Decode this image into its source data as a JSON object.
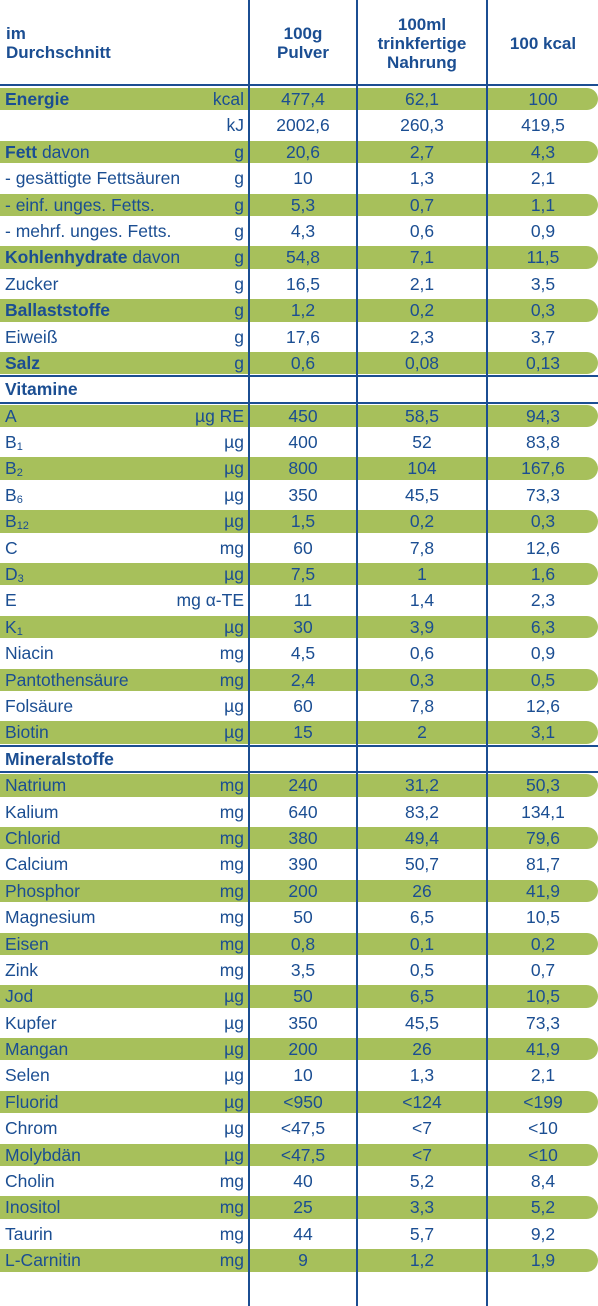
{
  "header": {
    "col0_line1": "im",
    "col0_line2": "Durchschnitt",
    "col1_line1": "100g",
    "col1_line2": "Pulver",
    "col2_line1": "100ml",
    "col2_line2": "trinkfertige",
    "col2_line3": "Nahrung",
    "col3_line1": "100 kcal"
  },
  "rows": [
    {
      "name_bold": "Energie",
      "name": "",
      "sub": "",
      "unit": "kcal",
      "v1": "477,4",
      "v2": "62,1",
      "v3": "100",
      "green": true
    },
    {
      "name_bold": "",
      "name": "",
      "sub": "",
      "unit": "kJ",
      "v1": "2002,6",
      "v2": "260,3",
      "v3": "419,5",
      "green": false
    },
    {
      "name_bold": "Fett",
      "name": " davon",
      "sub": "",
      "unit": "g",
      "v1": "20,6",
      "v2": "2,7",
      "v3": "4,3",
      "green": true
    },
    {
      "name_bold": "",
      "name": "- gesättigte Fettsäuren",
      "sub": "",
      "unit": "g",
      "v1": "10",
      "v2": "1,3",
      "v3": "2,1",
      "green": false
    },
    {
      "name_bold": "",
      "name": "- einf. unges. Fetts.",
      "sub": "",
      "unit": "g",
      "v1": "5,3",
      "v2": "0,7",
      "v3": "1,1",
      "green": true
    },
    {
      "name_bold": "",
      "name": "- mehrf. unges. Fetts.",
      "sub": "",
      "unit": "g",
      "v1": "4,3",
      "v2": "0,6",
      "v3": "0,9",
      "green": false
    },
    {
      "name_bold": "Kohlenhydrate",
      "name": " davon",
      "sub": "",
      "unit": "g",
      "v1": "54,8",
      "v2": "7,1",
      "v3": "11,5",
      "green": true
    },
    {
      "name_bold": "",
      "name": "Zucker",
      "sub": "",
      "unit": "g",
      "v1": "16,5",
      "v2": "2,1",
      "v3": "3,5",
      "green": false
    },
    {
      "name_bold": "Ballaststoffe",
      "name": "",
      "sub": "",
      "unit": "g",
      "v1": "1,2",
      "v2": "0,2",
      "v3": "0,3",
      "green": true
    },
    {
      "name_bold": "",
      "name": "Eiweiß",
      "sub": "",
      "unit": "g",
      "v1": "17,6",
      "v2": "2,3",
      "v3": "3,7",
      "green": false
    },
    {
      "name_bold": "Salz",
      "name": "",
      "sub": "",
      "unit": "g",
      "v1": "0,6",
      "v2": "0,08",
      "v3": "0,13",
      "green": true
    },
    {
      "name_bold": "Vitamine",
      "name": "",
      "sub": "",
      "unit": "",
      "v1": "",
      "v2": "",
      "v3": "",
      "green": false
    },
    {
      "name_bold": "",
      "name": "A",
      "sub": "",
      "unit": "µg RE",
      "v1": "450",
      "v2": "58,5",
      "v3": "94,3",
      "green": true
    },
    {
      "name_bold": "",
      "name": "B",
      "sub": "1",
      "unit": "µg",
      "v1": "400",
      "v2": "52",
      "v3": "83,8",
      "green": false
    },
    {
      "name_bold": "",
      "name": "B",
      "sub": "2",
      "unit": "µg",
      "v1": "800",
      "v2": "104",
      "v3": "167,6",
      "green": true
    },
    {
      "name_bold": "",
      "name": "B",
      "sub": "6",
      "unit": "µg",
      "v1": "350",
      "v2": "45,5",
      "v3": "73,3",
      "green": false
    },
    {
      "name_bold": "",
      "name": "B",
      "sub": "12",
      "unit": "µg",
      "v1": "1,5",
      "v2": "0,2",
      "v3": "0,3",
      "green": true
    },
    {
      "name_bold": "",
      "name": "C",
      "sub": "",
      "unit": "mg",
      "v1": "60",
      "v2": "7,8",
      "v3": "12,6",
      "green": false
    },
    {
      "name_bold": "",
      "name": "D",
      "sub": "3",
      "unit": "µg",
      "v1": "7,5",
      "v2": "1",
      "v3": "1,6",
      "green": true
    },
    {
      "name_bold": "",
      "name": "E",
      "sub": "",
      "unit": "mg α-TE",
      "v1": "11",
      "v2": "1,4",
      "v3": "2,3",
      "green": false
    },
    {
      "name_bold": "",
      "name": "K",
      "sub": "1",
      "unit": "µg",
      "v1": "30",
      "v2": "3,9",
      "v3": "6,3",
      "green": true
    },
    {
      "name_bold": "",
      "name": "Niacin",
      "sub": "",
      "unit": "mg",
      "v1": "4,5",
      "v2": "0,6",
      "v3": "0,9",
      "green": false
    },
    {
      "name_bold": "",
      "name": "Pantothensäure",
      "sub": "",
      "unit": "mg",
      "v1": "2,4",
      "v2": "0,3",
      "v3": "0,5",
      "green": true
    },
    {
      "name_bold": "",
      "name": "Folsäure",
      "sub": "",
      "unit": "µg",
      "v1": "60",
      "v2": "7,8",
      "v3": "12,6",
      "green": false
    },
    {
      "name_bold": "",
      "name": "Biotin",
      "sub": "",
      "unit": "µg",
      "v1": "15",
      "v2": "2",
      "v3": "3,1",
      "green": true
    },
    {
      "name_bold": "Mineralstoffe",
      "name": "",
      "sub": "",
      "unit": "",
      "v1": "",
      "v2": "",
      "v3": "",
      "green": false
    },
    {
      "name_bold": "",
      "name": "Natrium",
      "sub": "",
      "unit": "mg",
      "v1": "240",
      "v2": "31,2",
      "v3": "50,3",
      "green": true
    },
    {
      "name_bold": "",
      "name": "Kalium",
      "sub": "",
      "unit": "mg",
      "v1": "640",
      "v2": "83,2",
      "v3": "134,1",
      "green": false
    },
    {
      "name_bold": "",
      "name": "Chlorid",
      "sub": "",
      "unit": "mg",
      "v1": "380",
      "v2": "49,4",
      "v3": "79,6",
      "green": true
    },
    {
      "name_bold": "",
      "name": "Calcium",
      "sub": "",
      "unit": "mg",
      "v1": "390",
      "v2": "50,7",
      "v3": "81,7",
      "green": false
    },
    {
      "name_bold": "",
      "name": "Phosphor",
      "sub": "",
      "unit": "mg",
      "v1": "200",
      "v2": "26",
      "v3": "41,9",
      "green": true
    },
    {
      "name_bold": "",
      "name": "Magnesium",
      "sub": "",
      "unit": "mg",
      "v1": "50",
      "v2": "6,5",
      "v3": "10,5",
      "green": false
    },
    {
      "name_bold": "",
      "name": "Eisen",
      "sub": "",
      "unit": "mg",
      "v1": "0,8",
      "v2": "0,1",
      "v3": "0,2",
      "green": true
    },
    {
      "name_bold": "",
      "name": "Zink",
      "sub": "",
      "unit": "mg",
      "v1": "3,5",
      "v2": "0,5",
      "v3": "0,7",
      "green": false
    },
    {
      "name_bold": "",
      "name": "Jod",
      "sub": "",
      "unit": "µg",
      "v1": "50",
      "v2": "6,5",
      "v3": "10,5",
      "green": true
    },
    {
      "name_bold": "",
      "name": "Kupfer",
      "sub": "",
      "unit": "µg",
      "v1": "350",
      "v2": "45,5",
      "v3": "73,3",
      "green": false
    },
    {
      "name_bold": "",
      "name": "Mangan",
      "sub": "",
      "unit": "µg",
      "v1": "200",
      "v2": "26",
      "v3": "41,9",
      "green": true
    },
    {
      "name_bold": "",
      "name": "Selen",
      "sub": "",
      "unit": "µg",
      "v1": "10",
      "v2": "1,3",
      "v3": "2,1",
      "green": false
    },
    {
      "name_bold": "",
      "name": "Fluorid",
      "sub": "",
      "unit": "µg",
      "v1": "<950",
      "v2": "<124",
      "v3": "<199",
      "green": true
    },
    {
      "name_bold": "",
      "name": "Chrom",
      "sub": "",
      "unit": "µg",
      "v1": "<47,5",
      "v2": "<7",
      "v3": "<10",
      "green": false
    },
    {
      "name_bold": "",
      "name": "Molybdän",
      "sub": "",
      "unit": "µg",
      "v1": "<47,5",
      "v2": "<7",
      "v3": "<10",
      "green": true
    },
    {
      "name_bold": "",
      "name": "Cholin",
      "sub": "",
      "unit": "mg",
      "v1": "40",
      "v2": "5,2",
      "v3": "8,4",
      "green": false
    },
    {
      "name_bold": "",
      "name": "Inositol",
      "sub": "",
      "unit": "mg",
      "v1": "25",
      "v2": "3,3",
      "v3": "5,2",
      "green": true
    },
    {
      "name_bold": "",
      "name": "Taurin",
      "sub": "",
      "unit": "mg",
      "v1": "44",
      "v2": "5,7",
      "v3": "9,2",
      "green": false
    },
    {
      "name_bold": "",
      "name": "L-Carnitin",
      "sub": "",
      "unit": "mg",
      "v1": "9",
      "v2": "1,2",
      "v3": "1,9",
      "green": true
    }
  ],
  "colors": {
    "text": "#1b4e92",
    "band": "#a7c05b",
    "background": "#ffffff"
  }
}
